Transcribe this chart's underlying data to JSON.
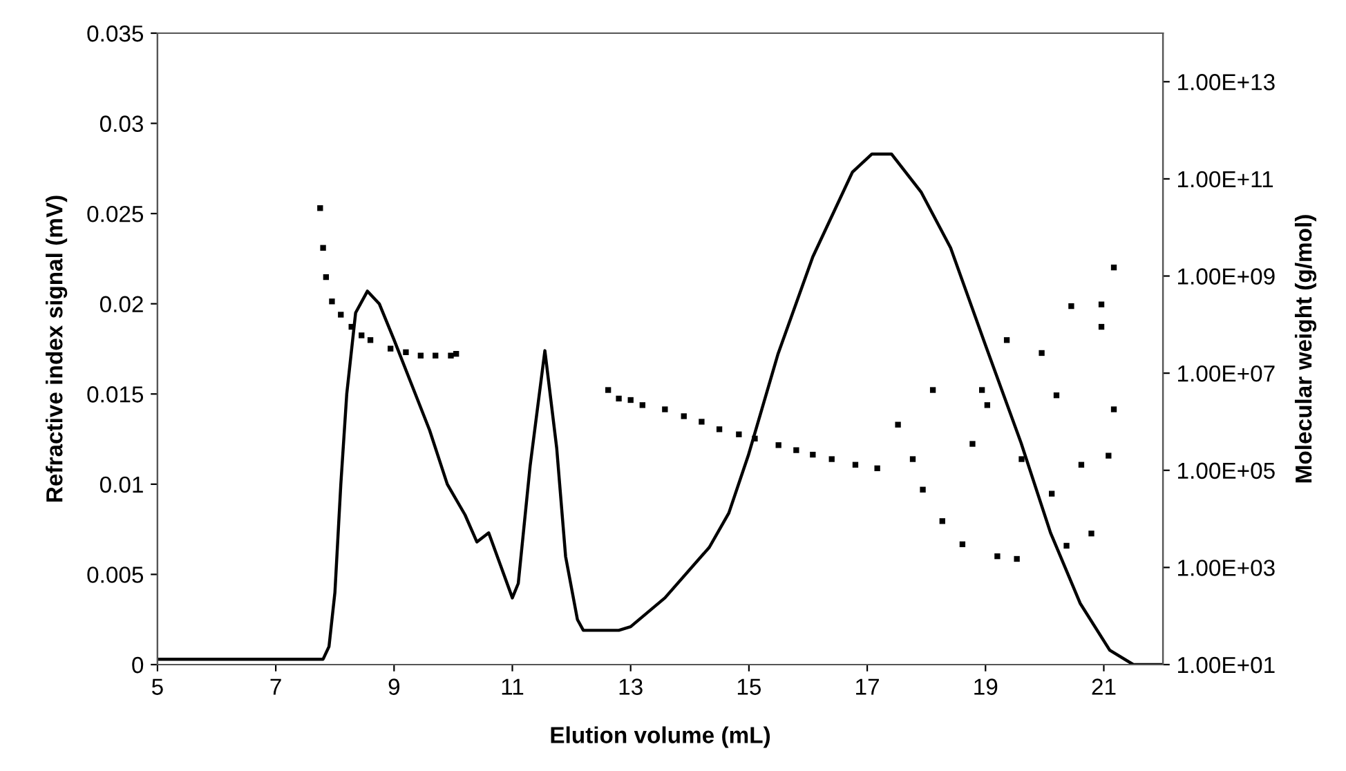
{
  "chart_data": {
    "type": "line",
    "xlabel": "Elution volume (mL)",
    "ylabel": "Refractive index signal (mV)",
    "y2label": "Molecular weight (g/mol)",
    "xlim": [
      5,
      22
    ],
    "xticks": [
      5,
      7,
      9,
      11,
      13,
      15,
      17,
      19,
      21
    ],
    "ylim": [
      0,
      0.035
    ],
    "yticks": [
      0,
      0.005,
      0.01,
      0.015,
      0.02,
      0.025,
      0.03,
      0.035
    ],
    "log": "y2",
    "y2lim": [
      10,
      100000000000000.0
    ],
    "y2ticks": [
      {
        "value": 10,
        "label": "1.00E+01"
      },
      {
        "value": 1000,
        "label": "1.00E+03"
      },
      {
        "value": 100000,
        "label": "1.00E+05"
      },
      {
        "value": 10000000,
        "label": "1.00E+07"
      },
      {
        "value": 1000000000,
        "label": "1.00E+09"
      },
      {
        "value": 100000000000,
        "label": "1.00E+11"
      },
      {
        "value": 10000000000000,
        "label": "1.00E+13"
      }
    ],
    "grid": false,
    "legend": false,
    "series": [
      {
        "color": "#000000",
        "line_style": "solid",
        "marker": "none",
        "x": [
          5,
          7.8,
          7.9,
          8.0,
          8.1,
          8.2,
          8.35,
          8.55,
          8.75,
          9.0,
          9.3,
          9.6,
          9.9,
          10.2,
          10.4,
          10.6,
          10.8,
          11.0,
          11.1,
          11.3,
          11.55,
          11.75,
          11.9,
          12.1,
          12.2,
          12.8,
          13.0,
          13.58,
          14.33,
          14.66,
          14.99,
          15.49,
          16.08,
          16.75,
          17.08,
          17.41,
          17.91,
          18.41,
          19.0,
          19.6,
          20.1,
          20.6,
          21.1,
          21.5,
          22.0
        ],
        "values": [
          0.0003,
          0.0003,
          0.001,
          0.004,
          0.01,
          0.015,
          0.0195,
          0.0207,
          0.02,
          0.018,
          0.0155,
          0.013,
          0.01,
          0.0083,
          0.0068,
          0.0073,
          0.0055,
          0.0037,
          0.0045,
          0.011,
          0.0174,
          0.012,
          0.006,
          0.0025,
          0.0019,
          0.0019,
          0.0021,
          0.0037,
          0.0065,
          0.0084,
          0.0116,
          0.0172,
          0.0226,
          0.0273,
          0.0283,
          0.0283,
          0.0262,
          0.0231,
          0.0177,
          0.0123,
          0.0073,
          0.0034,
          0.0008,
          0,
          0
        ]
      },
      {
        "type": "scatter",
        "axis": "y2",
        "color": "#000000",
        "marker": "square",
        "x": [
          7.75,
          7.8,
          7.85,
          7.95,
          8.1,
          8.28,
          8.45,
          8.6,
          8.94,
          9.2,
          9.45,
          9.7,
          9.96,
          10.05,
          12.62,
          12.8,
          13.0,
          13.2,
          13.58,
          13.9,
          14.2,
          14.5,
          14.83,
          15.1,
          15.5,
          15.8,
          16.08,
          16.4,
          16.8,
          17.17,
          17.52,
          17.77,
          17.94,
          18.11,
          18.27,
          18.61,
          18.78,
          18.94,
          19.03,
          19.2,
          19.36,
          19.53,
          19.61,
          19.95,
          20.12,
          20.2,
          20.37,
          20.45,
          20.62,
          20.79,
          20.96,
          20.96,
          21.08,
          21.17,
          21.17
        ],
        "values": [
          25000000000.0,
          3800000000.0,
          950000000.0,
          300000000.0,
          160000000.0,
          90000000.0,
          60000000.0,
          48000000.0,
          32000000.0,
          27000000.0,
          23000000.0,
          23000000.0,
          23000000.0,
          25000000.0,
          4500000.0,
          3000000.0,
          2800000.0,
          2200000.0,
          1800000.0,
          1300000.0,
          1000000.0,
          700000.0,
          550000.0,
          450000.0,
          330000.0,
          260000.0,
          210000.0,
          170000.0,
          130000.0,
          110000.0,
          870000.0,
          170000.0,
          40000.0,
          4500000.0,
          9000.0,
          3000.0,
          350000.0,
          4500000.0,
          2200000.0,
          1700.0,
          48000000.0,
          1500.0,
          170000.0,
          26000000.0,
          33000.0,
          3500000.0,
          2800.0,
          240000000.0,
          130000.0,
          5000.0,
          260000000.0,
          90000000.0,
          200000.0,
          1500000000.0,
          1800000.0
        ]
      }
    ]
  }
}
